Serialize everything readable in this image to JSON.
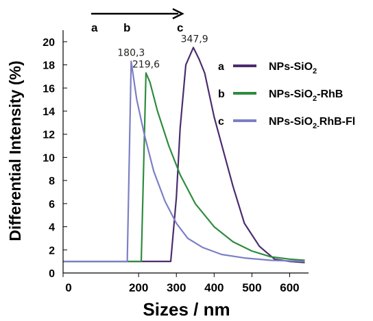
{
  "chart_data": {
    "type": "line",
    "xlabel": "Sizes / nm",
    "ylabel": "Differential Intensity (%)",
    "xlim": [
      0,
      650
    ],
    "ylim": [
      0,
      21
    ],
    "xticks": [
      "0",
      "200",
      "300",
      "400",
      "500",
      "600"
    ],
    "yticks": [
      "0",
      "2",
      "4",
      "6",
      "8",
      "10",
      "12",
      "14",
      "16",
      "18",
      "20"
    ],
    "grid": false,
    "legend_position": "right",
    "series": [
      {
        "letter": "a",
        "name": "NPs-SiO2",
        "name_main": "NPs-SiO",
        "name_sub": "2",
        "color": "#4a2c6e",
        "peak_label": "347,9",
        "peak": {
          "x": 347.9,
          "y": 19.5
        },
        "x": [
          0,
          285,
          300,
          310,
          325,
          345,
          360,
          375,
          400,
          450,
          480,
          520,
          560,
          600,
          640
        ],
        "y": [
          1.0,
          1.0,
          6.5,
          12.5,
          18.0,
          19.5,
          18.5,
          17.3,
          13.5,
          7.5,
          4.3,
          2.3,
          1.2,
          1.0,
          0.9
        ]
      },
      {
        "letter": "b",
        "name": "NPs-SiO2-RhB",
        "name_main": "NPs-SiO",
        "name_sub": "2",
        "name_tail": "-RhB",
        "color": "#2e8b3e",
        "peak_label": "219,6",
        "peak": {
          "x": 219.6,
          "y": 17.3
        },
        "x": [
          0,
          207,
          219.6,
          230,
          250,
          280,
          310,
          350,
          400,
          450,
          500,
          550,
          600,
          640
        ],
        "y": [
          1.0,
          1.0,
          17.3,
          16.5,
          14.0,
          11.0,
          8.5,
          6.0,
          4.0,
          2.7,
          1.9,
          1.4,
          1.2,
          1.1
        ]
      },
      {
        "letter": "c",
        "name": "NPs-SiO2-RhB-Fl",
        "name_main": "NPs-SiO",
        "name_sub": "2-",
        "name_tail": "RhB-Fl",
        "color": "#7b7fc4",
        "peak_label": "180,3",
        "peak": {
          "x": 180.3,
          "y": 18.3
        },
        "x": [
          0,
          170,
          180.3,
          195,
          215,
          240,
          270,
          300,
          330,
          370,
          420,
          480,
          550,
          640
        ],
        "y": [
          1.0,
          1.0,
          18.3,
          15.0,
          12.0,
          8.8,
          6.2,
          4.3,
          3.0,
          2.2,
          1.6,
          1.3,
          1.1,
          1.0
        ]
      }
    ],
    "annotations": {
      "arrow_letters": [
        "a",
        "b",
        "c"
      ]
    }
  }
}
